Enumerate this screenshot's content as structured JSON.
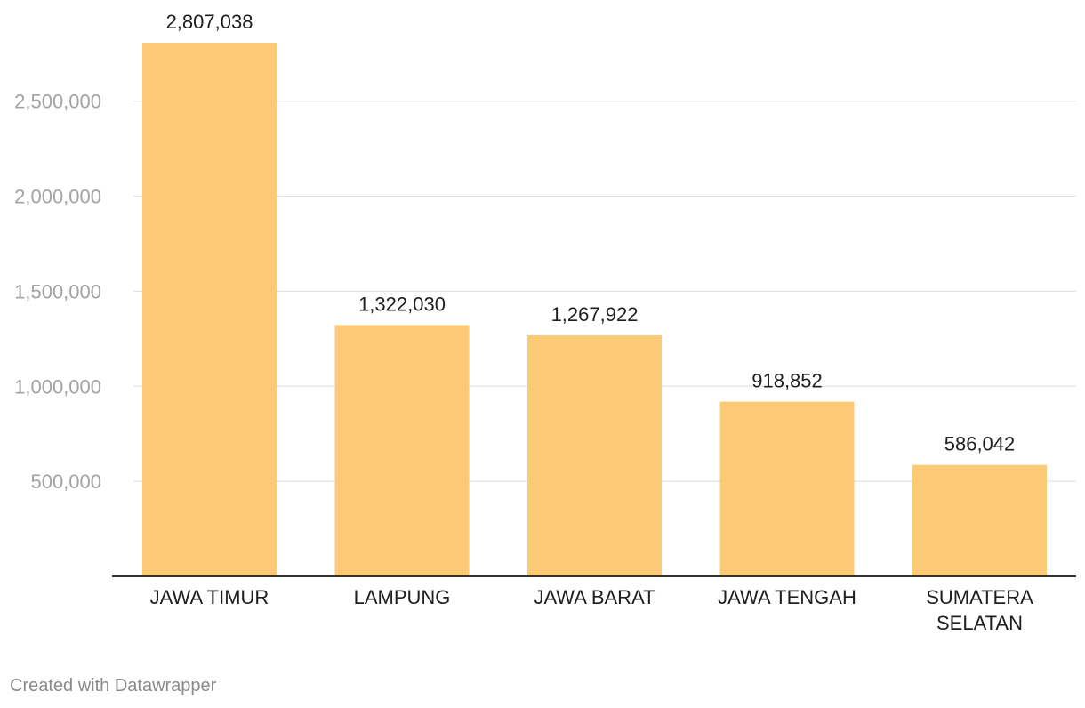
{
  "chart_data": {
    "type": "bar",
    "categories": [
      [
        "JAWA TIMUR"
      ],
      [
        "LAMPUNG"
      ],
      [
        "JAWA BARAT"
      ],
      [
        "JAWA TENGAH"
      ],
      [
        "SUMATERA",
        "SELATAN"
      ]
    ],
    "values": [
      2807038,
      1322030,
      1267922,
      918852,
      586042
    ],
    "value_labels": [
      "2,807,038",
      "1,322,030",
      "1,267,922",
      "918,852",
      "586,042"
    ],
    "yticks": [
      500000,
      1000000,
      1500000,
      2000000,
      2500000
    ],
    "ytick_labels": [
      "500,000",
      "1,000,000",
      "1,500,000",
      "2,000,000",
      "2,500,000"
    ],
    "ylim": [
      0,
      2807038
    ],
    "grid": true,
    "bar_color": "#fcc977",
    "title": "",
    "xlabel": "",
    "ylabel": ""
  },
  "footer": {
    "credit": "Created with Datawrapper"
  }
}
